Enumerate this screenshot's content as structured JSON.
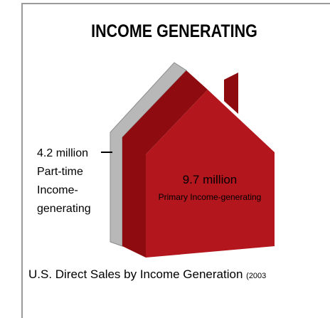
{
  "title": "INCOME GENERATING",
  "segments": [
    {
      "value_label": "4.2 million",
      "label": "Part-time Income-generating"
    },
    {
      "value_label": "9.7 million",
      "label": "Primary Income-generating"
    }
  ],
  "caption": "U.S. Direct Sales by Income Generation",
  "caption_note": "(2003"
}
